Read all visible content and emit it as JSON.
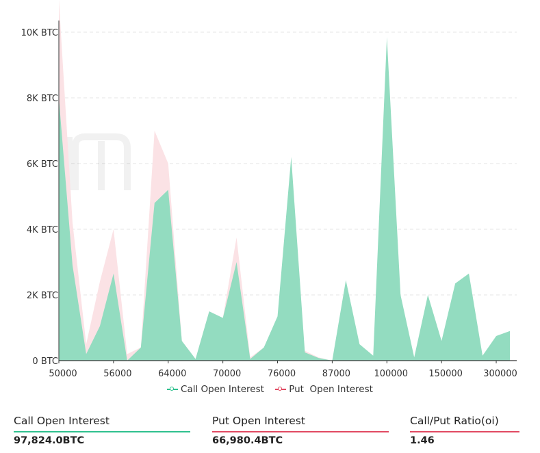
{
  "chart_data": {
    "type": "area",
    "title": "",
    "xlabel": "",
    "ylabel": "",
    "ylim": [
      0,
      10000
    ],
    "yticks": [
      {
        "value": 0,
        "label": "0 BTC"
      },
      {
        "value": 2000,
        "label": "2K BTC"
      },
      {
        "value": 4000,
        "label": "4K BTC"
      },
      {
        "value": 6000,
        "label": "6K BTC"
      },
      {
        "value": 8000,
        "label": "8K BTC"
      },
      {
        "value": 10000,
        "label": "10K BTC"
      }
    ],
    "xticks": [
      {
        "index": 0,
        "label": "50000"
      },
      {
        "index": 4,
        "label": "56000"
      },
      {
        "index": 8,
        "label": "64000"
      },
      {
        "index": 12,
        "label": "70000"
      },
      {
        "index": 16,
        "label": "76000"
      },
      {
        "index": 20,
        "label": "87000"
      },
      {
        "index": 24,
        "label": "100000"
      },
      {
        "index": 28,
        "label": "150000"
      },
      {
        "index": 32,
        "label": "300000"
      }
    ],
    "n_points": 34,
    "series": [
      {
        "name": "Call Open Interest",
        "color": "#2fc08e",
        "fill": "#93dcc0",
        "values": [
          8000,
          2900,
          200,
          1050,
          2650,
          0,
          400,
          4800,
          5200,
          600,
          50,
          1500,
          1300,
          3000,
          50,
          400,
          1350,
          6200,
          250,
          80,
          0,
          2450,
          500,
          150,
          9850,
          2000,
          100,
          2000,
          600,
          2350,
          2650,
          150,
          750,
          900
        ]
      },
      {
        "name": "Put  Open Interest",
        "color": "#e14a62",
        "fill": "#fbe2e5",
        "values": [
          11000,
          4200,
          500,
          2400,
          4000,
          200,
          400,
          7000,
          6000,
          600,
          50,
          1500,
          1300,
          3750,
          100,
          400,
          1200,
          1800,
          300,
          100,
          0,
          500,
          200,
          100,
          600,
          150,
          100,
          100,
          100,
          300,
          200,
          100,
          300,
          200
        ]
      }
    ],
    "legend_position": "bottom"
  },
  "stats": [
    {
      "label": "Call Open Interest",
      "value": "97,824.0BTC",
      "underline": "#2fc08e"
    },
    {
      "label": "Put Open Interest",
      "value": "66,980.4BTC",
      "underline": "#e14a62"
    },
    {
      "label": "Call/Put Ratio(oi)",
      "value": "1.46",
      "underline": "#e14a62"
    }
  ]
}
